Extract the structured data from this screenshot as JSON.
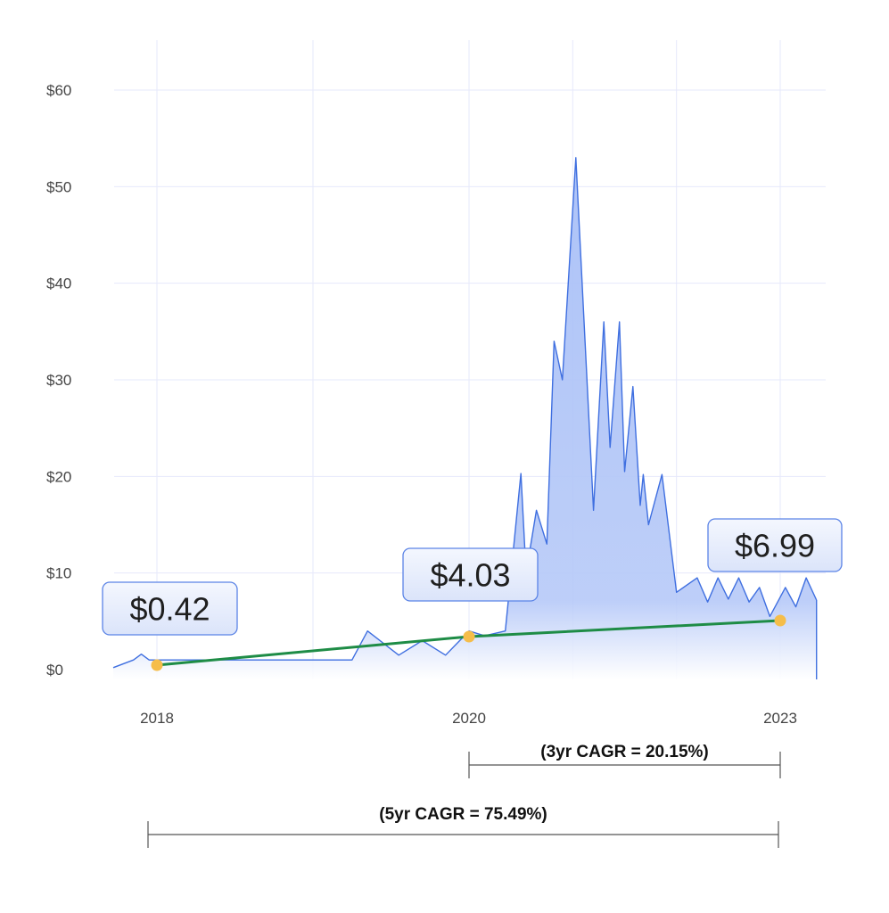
{
  "chart_data": {
    "type": "area",
    "title": "",
    "xlabel": "",
    "ylabel": "",
    "ylim": [
      0,
      65
    ],
    "y_ticks": [
      "$0",
      "$10",
      "$20",
      "$30",
      "$40",
      "$50",
      "$60"
    ],
    "x_ticks": [
      "2018",
      "2020",
      "2023"
    ],
    "grid": true,
    "series": [
      {
        "points": [
          [
            2017.72,
            0.2
          ],
          [
            2017.85,
            1.0
          ],
          [
            2017.9,
            1.6
          ],
          [
            2017.95,
            1.0
          ],
          [
            2018.0,
            1.0
          ],
          [
            2018.5,
            1.0
          ],
          [
            2019.0,
            1.0
          ],
          [
            2019.25,
            1.0
          ],
          [
            2019.35,
            4.0
          ],
          [
            2019.55,
            1.5
          ],
          [
            2019.7,
            3.0
          ],
          [
            2019.85,
            1.5
          ],
          [
            2020.0,
            4.0
          ],
          [
            2020.15,
            3.5
          ],
          [
            2020.35,
            4.0
          ],
          [
            2020.5,
            20.3
          ],
          [
            2020.55,
            10.0
          ],
          [
            2020.65,
            16.5
          ],
          [
            2020.75,
            13.0
          ],
          [
            2020.82,
            34.0
          ],
          [
            2020.9,
            30.0
          ],
          [
            2021.03,
            53.0
          ],
          [
            2021.2,
            16.5
          ],
          [
            2021.3,
            36.0
          ],
          [
            2021.36,
            23.0
          ],
          [
            2021.45,
            36.0
          ],
          [
            2021.5,
            20.5
          ],
          [
            2021.58,
            29.3
          ],
          [
            2021.65,
            17.0
          ],
          [
            2021.68,
            20.2
          ],
          [
            2021.73,
            15.0
          ],
          [
            2021.86,
            20.2
          ],
          [
            2022.0,
            8.0
          ],
          [
            2022.2,
            9.5
          ],
          [
            2022.3,
            7.0
          ],
          [
            2022.4,
            9.5
          ],
          [
            2022.5,
            7.3
          ],
          [
            2022.6,
            9.5
          ],
          [
            2022.7,
            7.0
          ],
          [
            2022.8,
            8.5
          ],
          [
            2022.9,
            5.5
          ],
          [
            2023.05,
            8.5
          ],
          [
            2023.15,
            6.5
          ],
          [
            2023.25,
            9.5
          ],
          [
            2023.35,
            7.2
          ]
        ]
      }
    ],
    "annotations": [
      {
        "x": 2018,
        "y": 0.42,
        "label": "$0.42"
      },
      {
        "x": 2020,
        "y": 4.03,
        "label": "$4.03"
      },
      {
        "x": 2023,
        "y": 6.99,
        "label": "$6.99"
      }
    ],
    "cagr_brackets": [
      {
        "label": "(3yr CAGR = 20.15%)",
        "from": 2020,
        "to": 2023
      },
      {
        "label": "(5yr CAGR = 75.49%)",
        "from": 2018,
        "to": 2023
      }
    ]
  },
  "colors": {
    "area_fill": "#a9c0f7",
    "area_line": "#3f6fe0",
    "trend_line": "#1e8c46",
    "marker": "#f5bd4a",
    "grid": "#e6e8fb",
    "callout_bg": "#e6ecfb",
    "callout_border": "#5a83e6"
  }
}
